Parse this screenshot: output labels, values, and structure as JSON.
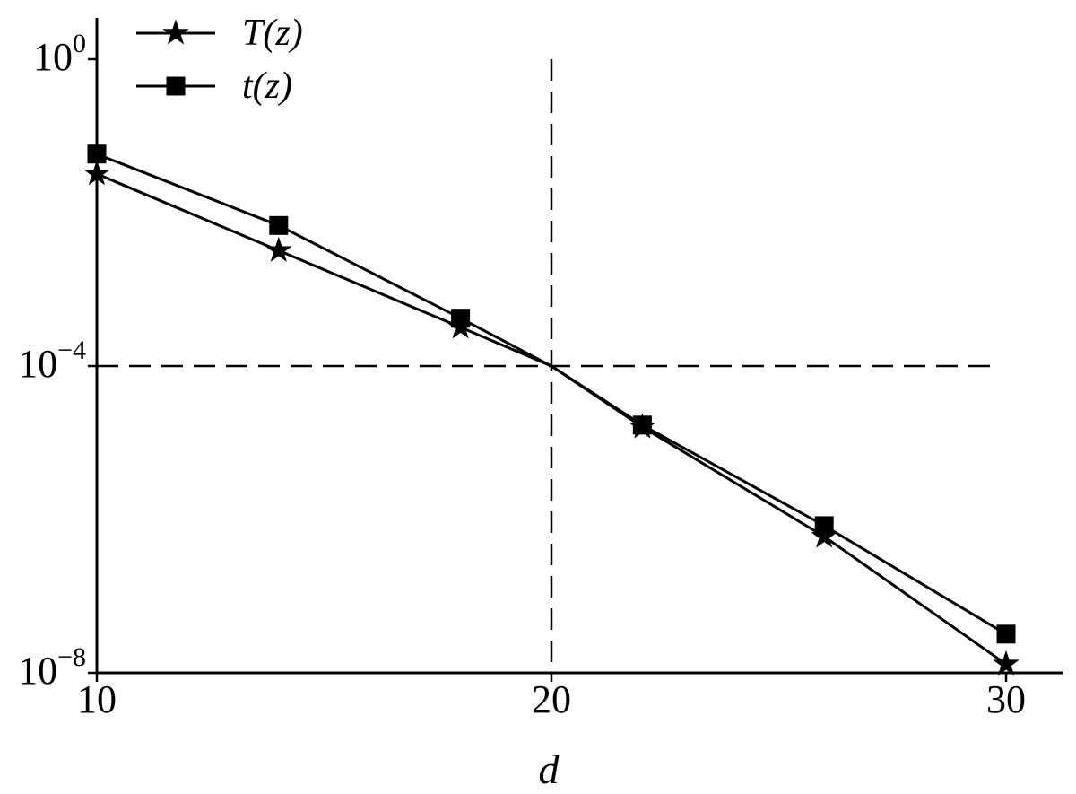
{
  "chart_data": {
    "type": "line",
    "title": "",
    "xlabel": "d",
    "ylabel": "",
    "xlim": [
      10,
      30
    ],
    "ylim": [
      1e-08,
      1
    ],
    "yscale": "log",
    "grid": false,
    "legend_position": "top-left",
    "x_ticks": [
      {
        "value": 10,
        "label": "10"
      },
      {
        "value": 20,
        "label": "20"
      },
      {
        "value": 30,
        "label": "30"
      }
    ],
    "y_ticks": [
      {
        "value": 1,
        "base": "10",
        "exp": "0"
      },
      {
        "value": 0.0001,
        "base": "10",
        "exp": "−4"
      },
      {
        "value": 1e-08,
        "base": "10",
        "exp": "−8"
      }
    ],
    "reference_lines": {
      "x": 20,
      "y": 0.0001
    },
    "series": [
      {
        "name": "T(z)",
        "marker": "star",
        "x": [
          10,
          14,
          18,
          20,
          22,
          26,
          30
        ],
        "y": [
          0.032,
          0.0032,
          0.00032,
          0.0001,
          1.6e-05,
          6e-07,
          1.3e-08
        ]
      },
      {
        "name": "t(z)",
        "marker": "square",
        "x": [
          10,
          14,
          18,
          20,
          22,
          26,
          30
        ],
        "y": [
          0.058,
          0.0068,
          0.00042,
          0.0001,
          1.7e-05,
          8.3e-07,
          3.2e-08
        ]
      }
    ]
  }
}
